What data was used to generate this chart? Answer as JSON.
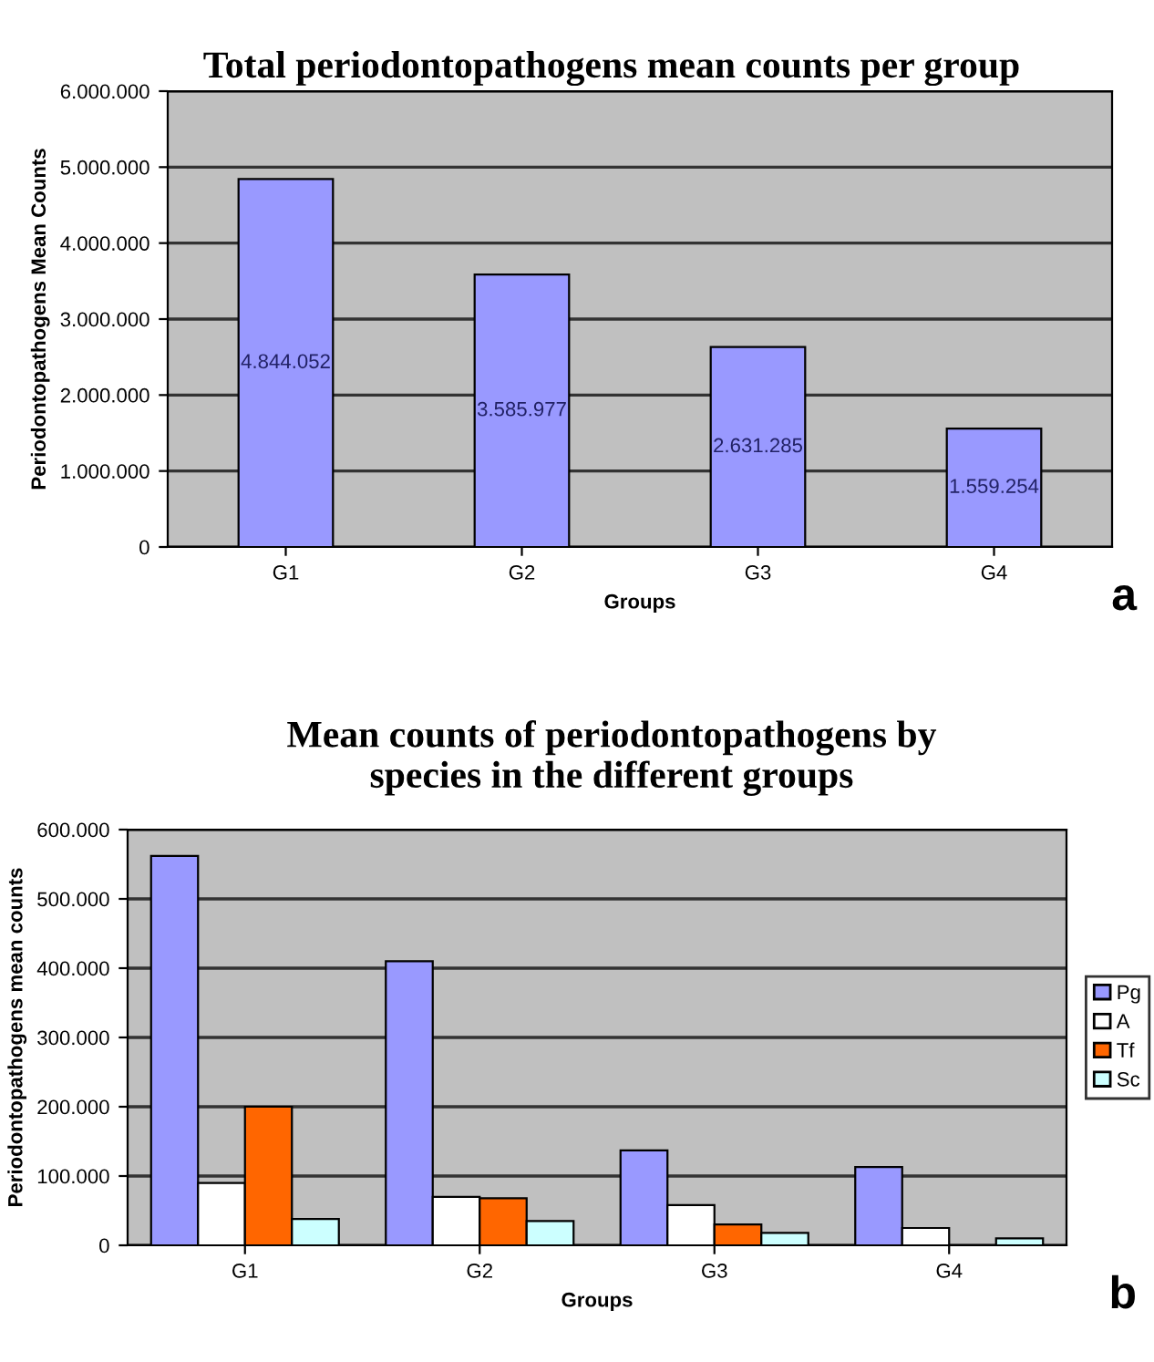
{
  "chart_data": [
    {
      "type": "bar",
      "title": "Total periodontopathogens mean counts per group",
      "xlabel": "Groups",
      "ylabel": "Periodontopathogens Mean Counts",
      "categories": [
        "G1",
        "G2",
        "G3",
        "G4"
      ],
      "series": [
        {
          "color": "#9999ff",
          "values": [
            4844052,
            3585977,
            2631285,
            1559254
          ],
          "value_labels": [
            "4.844.052",
            "3.585.977",
            "2.631.285",
            "1.559.254"
          ]
        }
      ],
      "ylim": [
        0,
        6000000
      ],
      "yticks": [
        {
          "value": 0,
          "label": "0"
        },
        {
          "value": 1000000,
          "label": "1.000.000"
        },
        {
          "value": 2000000,
          "label": "2.000.000"
        },
        {
          "value": 3000000,
          "label": "3.000.000"
        },
        {
          "value": 4000000,
          "label": "4.000.000"
        },
        {
          "value": 5000000,
          "label": "5.000.000"
        },
        {
          "value": 6000000,
          "label": "6.000.000"
        }
      ],
      "grid": "y",
      "annotations": [
        "a"
      ]
    },
    {
      "type": "bar",
      "title": "Mean counts of periodontopathogens by\nspecies in the different groups",
      "xlabel": "Groups",
      "ylabel": "Periodontopathogens mean counts",
      "categories": [
        "G1",
        "G2",
        "G3",
        "G4"
      ],
      "series": [
        {
          "name": "Pg",
          "color": "#9999ff",
          "values": [
            562000,
            410000,
            137000,
            113000
          ]
        },
        {
          "name": "A",
          "color": "#ffffff",
          "values": [
            90000,
            70000,
            58000,
            25000
          ]
        },
        {
          "name": "Tf",
          "color": "#ff6600",
          "values": [
            200000,
            68000,
            30000,
            null
          ]
        },
        {
          "name": "Sc",
          "color": "#ccffff",
          "values": [
            38000,
            35000,
            18000,
            10000
          ]
        }
      ],
      "ylim": [
        0,
        600000
      ],
      "yticks": [
        {
          "value": 0,
          "label": "0"
        },
        {
          "value": 100000,
          "label": "100.000"
        },
        {
          "value": 200000,
          "label": "200.000"
        },
        {
          "value": 300000,
          "label": "300.000"
        },
        {
          "value": 400000,
          "label": "400.000"
        },
        {
          "value": 500000,
          "label": "500.000"
        },
        {
          "value": 600000,
          "label": "600.000"
        }
      ],
      "grid": "y",
      "legend": "right",
      "annotations": [
        "b"
      ]
    }
  ]
}
